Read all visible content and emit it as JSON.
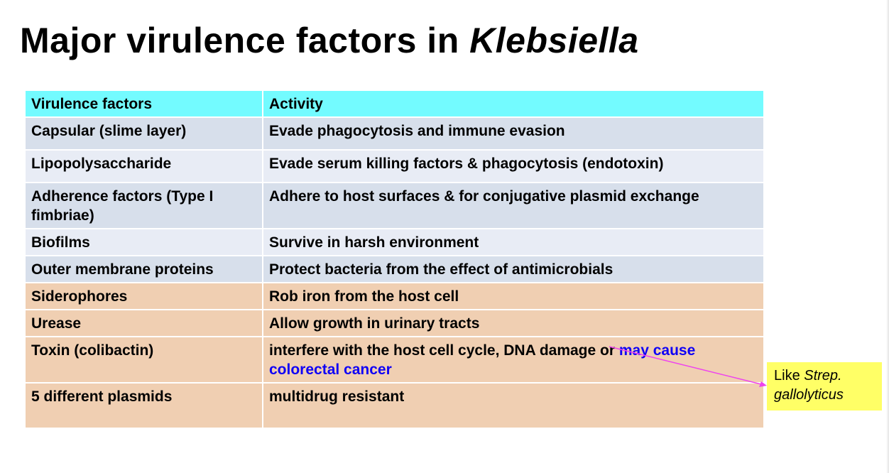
{
  "slide": {
    "title_plain": "Major virulence factors in ",
    "title_italic": "Klebsiella"
  },
  "table": {
    "headers": [
      "Virulence factors",
      "Activity"
    ],
    "rows": [
      {
        "factor": "Capsular (slime layer)",
        "activity": "Evade phagocytosis and immune evasion",
        "group": "blue"
      },
      {
        "factor": "Lipopolysaccharide",
        "activity": "Evade serum killing factors & phagocytosis (endotoxin)",
        "group": "lblue"
      },
      {
        "factor": "Adherence factors (Type I fimbriae)",
        "activity": "Adhere to host surfaces & for conjugative plasmid exchange",
        "group": "blue"
      },
      {
        "factor": "Biofilms",
        "activity": "Survive in harsh environment",
        "group": "lblue"
      },
      {
        "factor": "Outer membrane proteins",
        "activity": "Protect bacteria from the effect of antimicrobials",
        "group": "blue"
      },
      {
        "factor": "Siderophores",
        "activity": "Rob iron from the host cell",
        "group": "peach"
      },
      {
        "factor": "Urease",
        "activity": "Allow growth in urinary tracts",
        "group": "peach"
      },
      {
        "factor": "Toxin (colibactin)",
        "activity_plain": "interfere with the host cell cycle, DNA damage or ",
        "activity_highlight": "may cause colorectal cancer",
        "group": "peach",
        "factor_highlighted": true
      },
      {
        "factor": "5 different plasmids",
        "activity": "multidrug resistant",
        "group": "peach",
        "factor_highlighted": true
      }
    ]
  },
  "callout": {
    "text_plain": "Like ",
    "text_italic": "Strep. gallolyticus"
  },
  "colors": {
    "header_bg": "#73fbff",
    "row_blue": "#d7dfeb",
    "row_light_blue": "#e8ecf5",
    "row_peach": "#f0cfb2",
    "highlight_text": "#0f00f5",
    "callout_bg": "#ffff66",
    "arrow": "#ee44ee"
  }
}
